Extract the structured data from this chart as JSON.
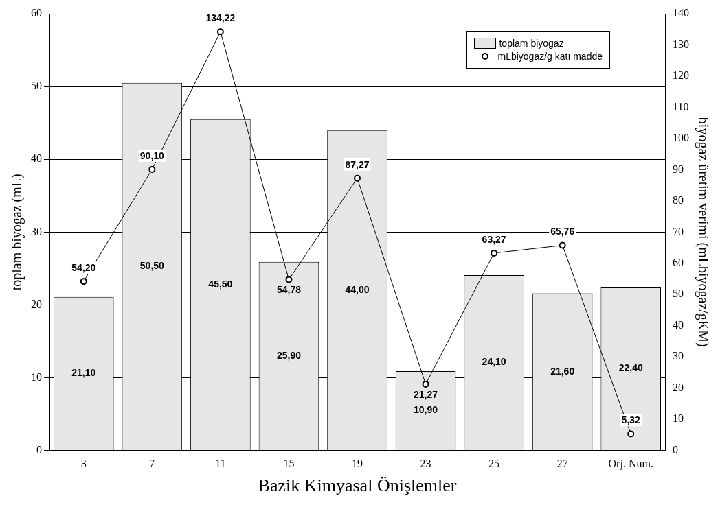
{
  "chart_data": {
    "type": "bar",
    "xlabel": "Bazik Kimyasal Önişlemler",
    "ylabel": "toplam biyogaz (mL)",
    "y2label": "biyogaz üretim verimi (mLbiyogaz/gKM)",
    "categories": [
      "3",
      "7",
      "11",
      "15",
      "19",
      "23",
      "25",
      "27",
      "Orj. Num."
    ],
    "series": [
      {
        "name": "toplam biyogaz",
        "color": "#e6e6e6",
        "values": [
          21.1,
          50.5,
          45.5,
          25.9,
          44.0,
          10.9,
          24.1,
          21.6,
          22.4
        ],
        "value_labels": [
          "21,10",
          "50,50",
          "45,50",
          "25,90",
          "44,00",
          "10,90",
          "24,10",
          "21,60",
          "22,40"
        ]
      },
      {
        "name": "mLbiyogaz/g katı madde",
        "type": "line",
        "axis": "y2",
        "color": "#000000",
        "values": [
          54.2,
          90.1,
          134.22,
          54.78,
          87.27,
          21.27,
          63.27,
          65.76,
          5.32
        ],
        "value_labels": [
          "54,20",
          "90,10",
          "134,22",
          "54,78",
          "87,27",
          "21,27",
          "63,27",
          "65,76",
          "5,32"
        ]
      }
    ],
    "ylim": [
      0,
      60
    ],
    "yticks": [
      0,
      10,
      20,
      30,
      40,
      50,
      60
    ],
    "y2lim": [
      0,
      140
    ],
    "y2ticks": [
      0,
      10,
      20,
      30,
      40,
      50,
      60,
      70,
      80,
      90,
      100,
      110,
      120,
      130,
      140
    ],
    "grid": "y",
    "legend": "top right",
    "marker": "circle",
    "line_style": "solid"
  }
}
